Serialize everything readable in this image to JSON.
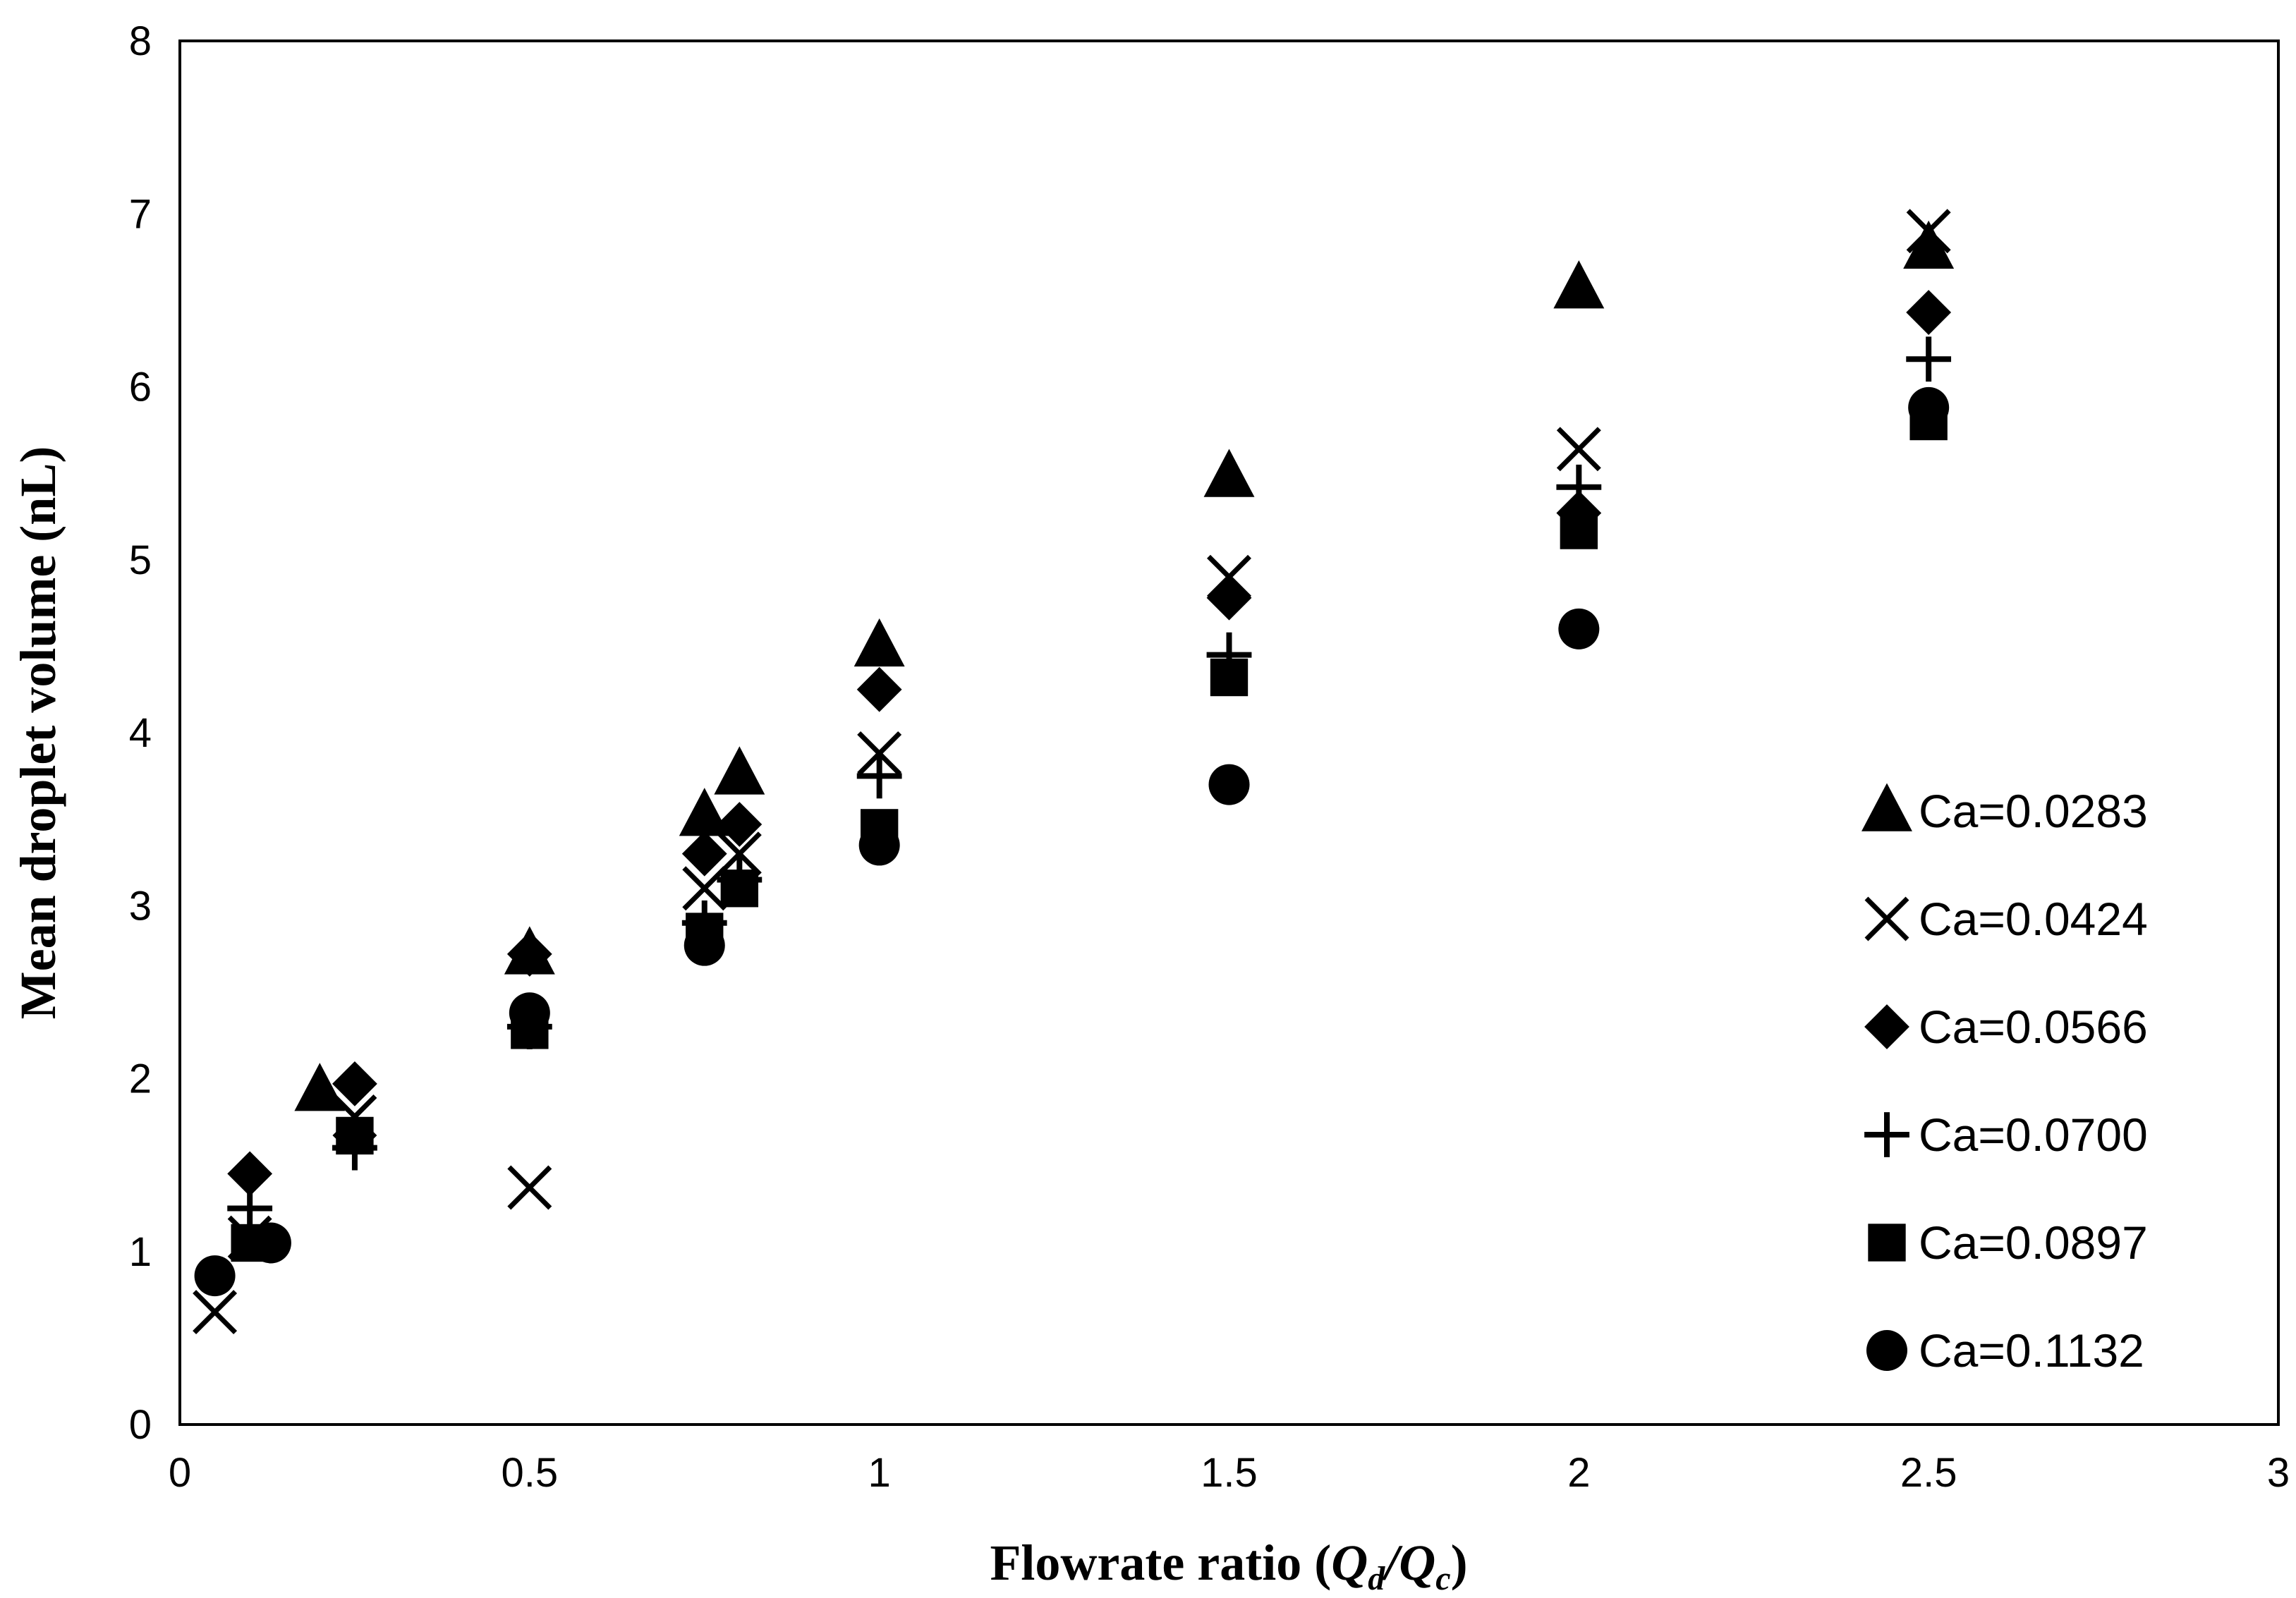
{
  "chart_data": {
    "type": "scatter",
    "title": "",
    "xlabel_parts": [
      {
        "text": "Flowrate ratio (",
        "italic": false,
        "sub": false
      },
      {
        "text": "Q",
        "italic": true,
        "sub": false
      },
      {
        "text": "d",
        "italic": true,
        "sub": true
      },
      {
        "text": "/",
        "italic": true,
        "sub": false
      },
      {
        "text": "Q",
        "italic": true,
        "sub": false
      },
      {
        "text": "c",
        "italic": true,
        "sub": true
      },
      {
        "text": ")",
        "italic": false,
        "sub": false
      }
    ],
    "ylabel": "Mean  droplet volume (nL)",
    "xlim": [
      0,
      3
    ],
    "ylim": [
      0,
      8
    ],
    "xticks": [
      0,
      0.5,
      1,
      1.5,
      2,
      2.5,
      3
    ],
    "xtick_labels": [
      "0",
      "0.5",
      "1",
      "1.5",
      "2",
      "2.5",
      "3"
    ],
    "yticks": [
      0,
      1,
      2,
      3,
      4,
      5,
      6,
      7,
      8
    ],
    "ytick_labels": [
      "0",
      "1",
      "2",
      "3",
      "4",
      "5",
      "6",
      "7",
      "8"
    ],
    "grid": false,
    "legend_position": "right",
    "series": [
      {
        "name": "Ca=0.0283",
        "marker": "triangle",
        "points": [
          [
            0.2,
            1.93
          ],
          [
            0.5,
            2.72
          ],
          [
            0.75,
            3.52
          ],
          [
            0.8,
            3.76
          ],
          [
            1.0,
            4.5
          ],
          [
            1.5,
            5.48
          ],
          [
            2.0,
            6.57
          ],
          [
            2.5,
            6.8
          ]
        ]
      },
      {
        "name": "Ca=0.0424",
        "marker": "x",
        "points": [
          [
            0.05,
            0.65
          ],
          [
            0.1,
            1.08
          ],
          [
            0.25,
            1.78
          ],
          [
            0.5,
            1.37
          ],
          [
            0.75,
            3.1
          ],
          [
            0.8,
            3.3
          ],
          [
            1.0,
            3.88
          ],
          [
            1.5,
            4.9
          ],
          [
            2.0,
            5.64
          ],
          [
            2.5,
            6.9
          ]
        ]
      },
      {
        "name": "Ca=0.0566",
        "marker": "diamond",
        "points": [
          [
            0.1,
            1.45
          ],
          [
            0.25,
            1.97
          ],
          [
            0.5,
            2.72
          ],
          [
            0.75,
            3.3
          ],
          [
            0.8,
            3.47
          ],
          [
            1.0,
            4.25
          ],
          [
            1.5,
            4.78
          ],
          [
            2.0,
            5.27
          ],
          [
            2.5,
            6.43
          ]
        ]
      },
      {
        "name": "Ca=0.0700",
        "marker": "plus",
        "points": [
          [
            0.1,
            1.25
          ],
          [
            0.25,
            1.6
          ],
          [
            0.5,
            2.3
          ],
          [
            0.75,
            2.9
          ],
          [
            0.8,
            3.15
          ],
          [
            1.0,
            3.75
          ],
          [
            1.5,
            4.45
          ],
          [
            2.0,
            5.42
          ],
          [
            2.5,
            6.16
          ]
        ]
      },
      {
        "name": "Ca=0.0897",
        "marker": "square",
        "points": [
          [
            0.1,
            1.05
          ],
          [
            0.25,
            1.67
          ],
          [
            0.5,
            2.28
          ],
          [
            0.75,
            2.85
          ],
          [
            0.8,
            3.1
          ],
          [
            1.0,
            3.45
          ],
          [
            1.5,
            4.32
          ],
          [
            2.0,
            5.17
          ],
          [
            2.5,
            5.8
          ]
        ]
      },
      {
        "name": "Ca=0.1132",
        "marker": "circle",
        "points": [
          [
            0.05,
            0.86
          ],
          [
            0.13,
            1.05
          ],
          [
            0.5,
            2.38
          ],
          [
            0.75,
            2.77
          ],
          [
            1.0,
            3.35
          ],
          [
            1.5,
            3.7
          ],
          [
            2.0,
            4.6
          ],
          [
            2.5,
            5.88
          ]
        ]
      }
    ]
  }
}
